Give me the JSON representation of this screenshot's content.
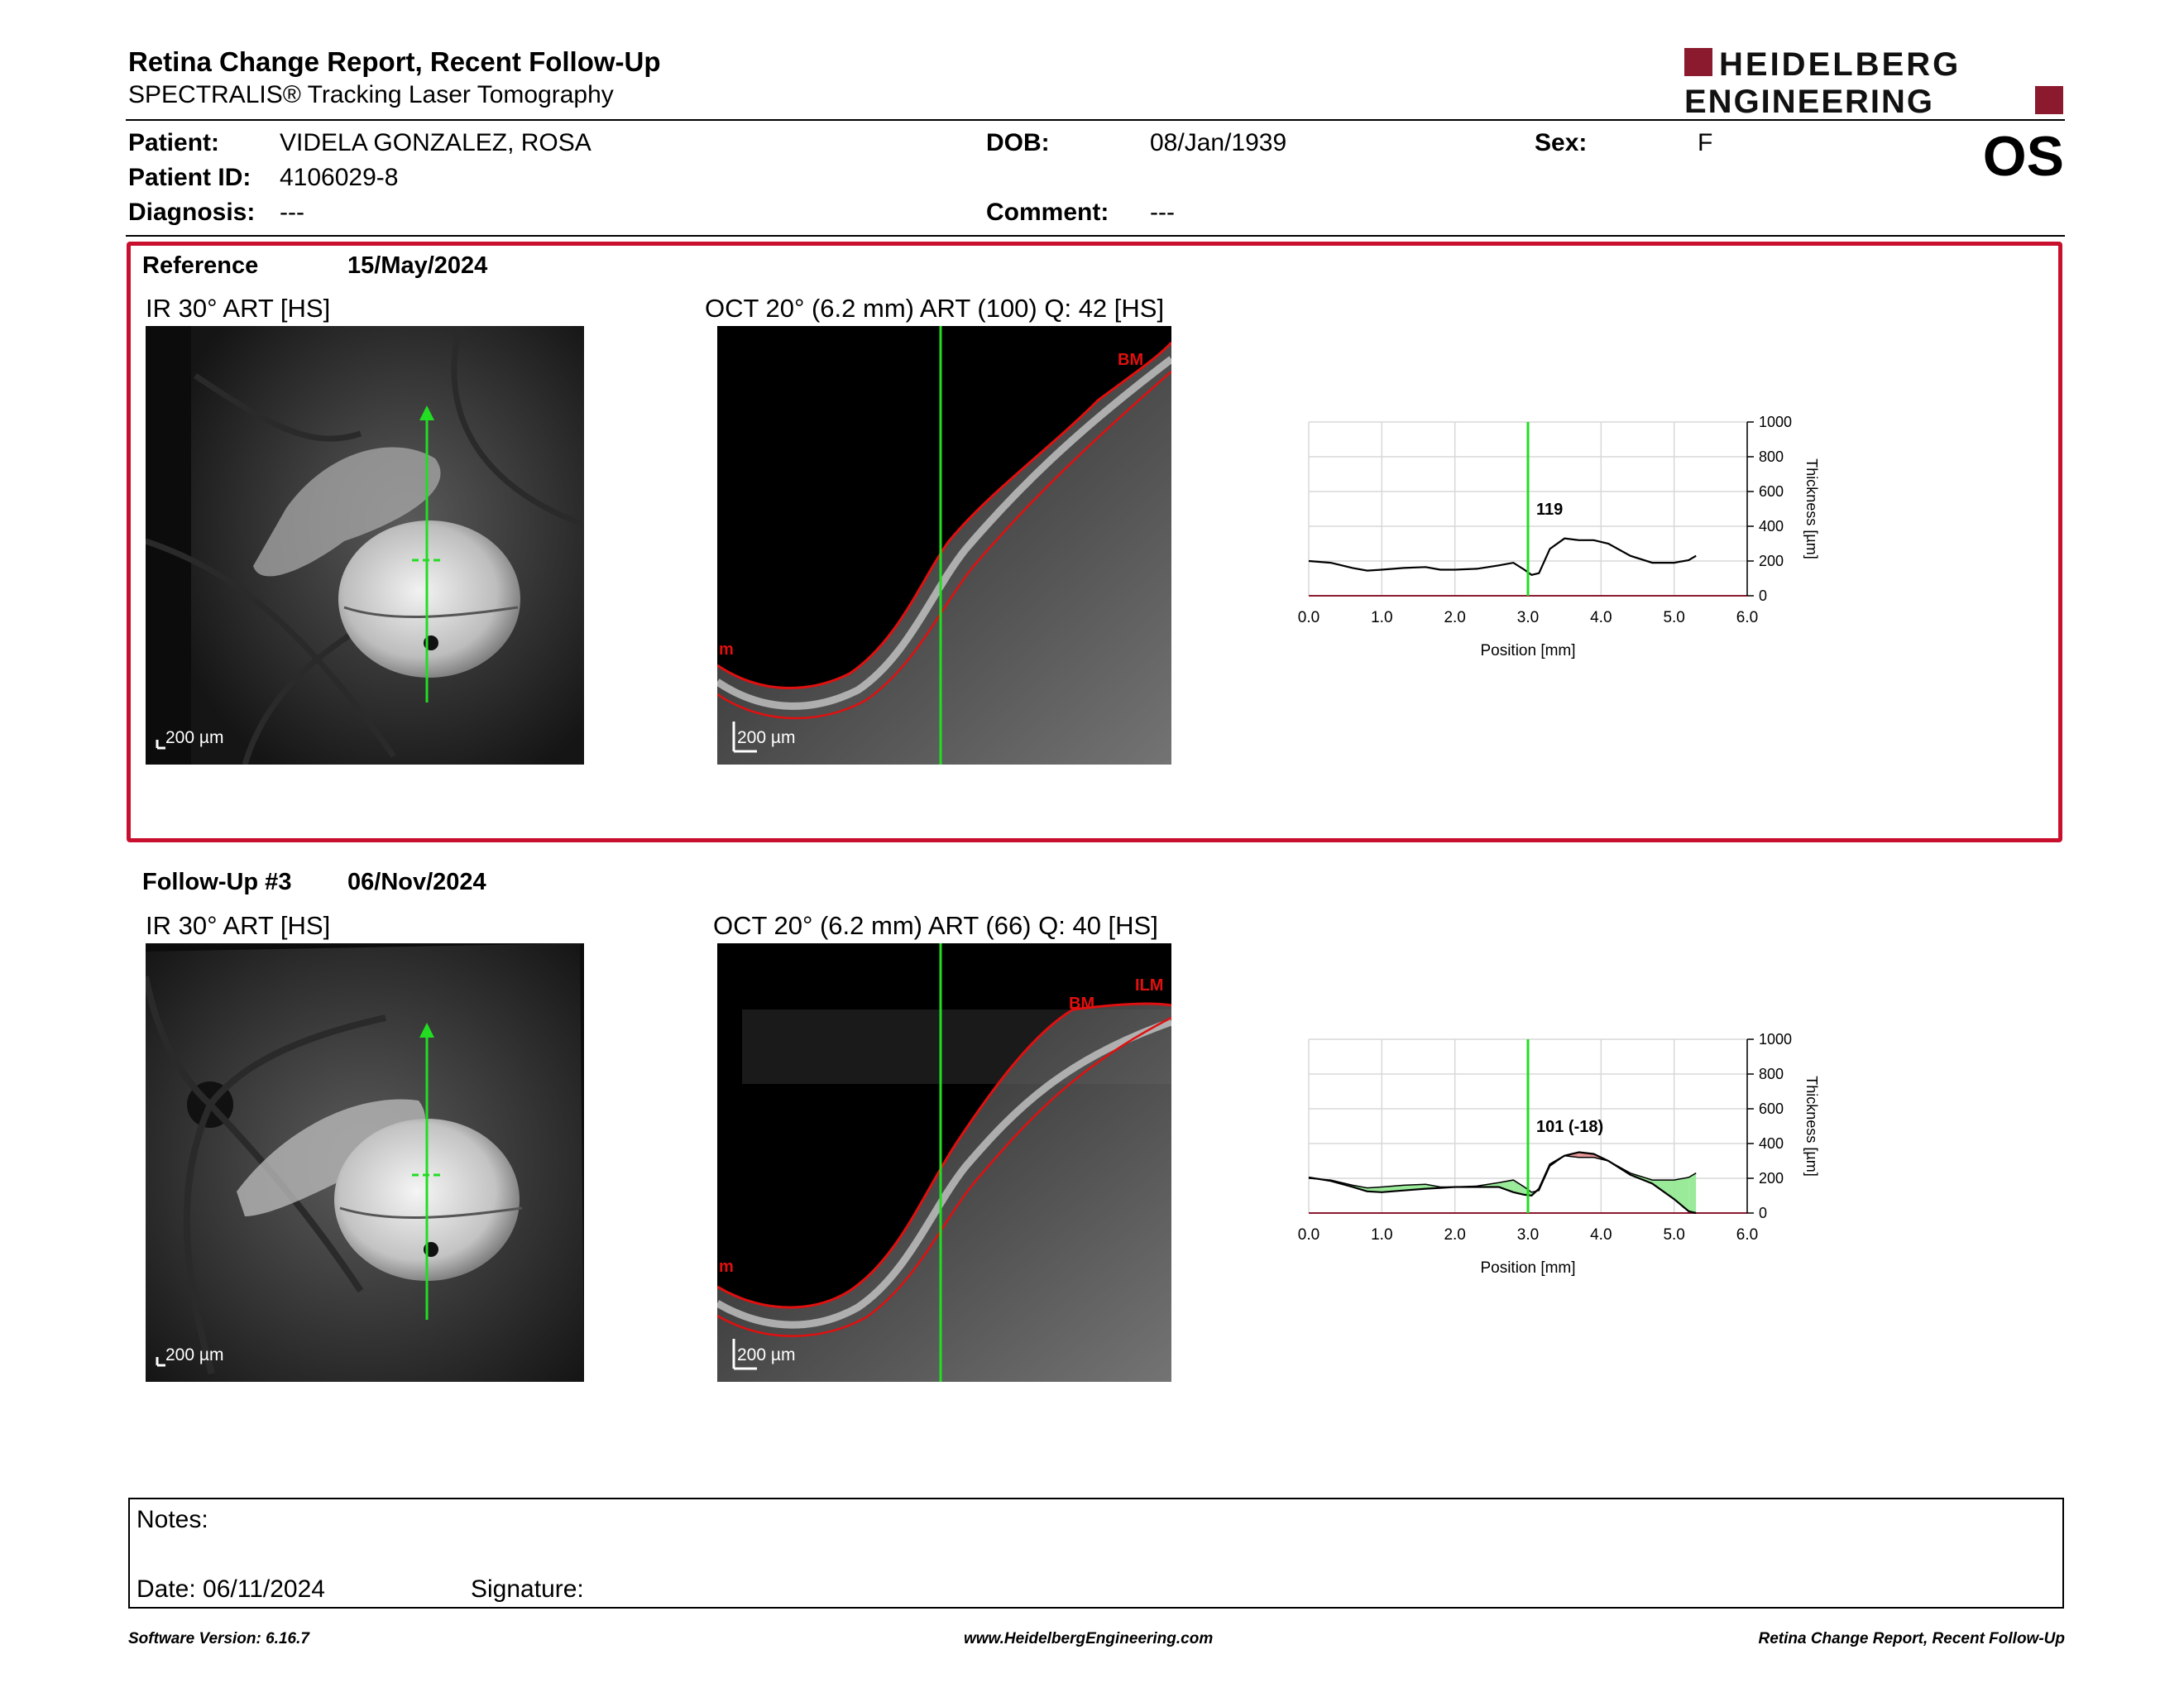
{
  "header": {
    "title": "Retina Change Report, Recent Follow-Up",
    "subtitle": "SPECTRALIS® Tracking Laser Tomography",
    "logo_line1": "HEIDELBERG",
    "logo_line2": "ENGINEERING",
    "eye": "OS",
    "brand_color": "#8b1a2f"
  },
  "patient": {
    "patient_label": "Patient:",
    "patient_value": "VIDELA GONZALEZ, ROSA",
    "id_label": "Patient ID:",
    "id_value": "4106029-8",
    "diagnosis_label": "Diagnosis:",
    "diagnosis_value": "---",
    "dob_label": "DOB:",
    "dob_value": "08/Jan/1939",
    "comment_label": "Comment:",
    "comment_value": "---",
    "sex_label": "Sex:",
    "sex_value": "F"
  },
  "reference": {
    "label": "Reference",
    "date": "15/May/2024",
    "ir_title": "IR 30° ART [HS]",
    "oct_title": "OCT 20° (6.2 mm) ART (100) Q: 42 [HS]",
    "ir_scale": "200 µm",
    "oct_scale": "200 µm",
    "oct_tag_top": "BM",
    "oct_tag_left": "m",
    "marker_value": "119",
    "border_color": "#c8102e"
  },
  "followup": {
    "label": "Follow-Up #3",
    "date": "06/Nov/2024",
    "ir_title": "IR 30° ART [HS]",
    "oct_title": "OCT 20° (6.2 mm) ART (66) Q: 40 [HS]",
    "ir_scale": "200 µm",
    "oct_scale": "200 µm",
    "oct_tag_top": "BM",
    "oct_tag_ilm": "ILM",
    "oct_tag_left": "m",
    "marker_value": "101 (-18)"
  },
  "chart_data": [
    {
      "type": "line",
      "xlabel": "Position [mm]",
      "ylabel": "Thickness [µm]",
      "xlim": [
        0,
        6
      ],
      "ylim": [
        0,
        1000
      ],
      "xticks": [
        "0.0",
        "1.0",
        "2.0",
        "3.0",
        "4.0",
        "5.0",
        "6.0"
      ],
      "yticks": [
        "0",
        "200",
        "400",
        "600",
        "800",
        "1000"
      ],
      "marker_x": 3.0,
      "marker_label": "119",
      "series": [
        {
          "x": [
            0,
            0.3,
            0.6,
            0.8,
            1.0,
            1.3,
            1.6,
            1.8,
            2.0,
            2.3,
            2.6,
            2.8,
            2.95,
            3.05,
            3.15,
            3.3,
            3.5,
            3.7,
            3.9,
            4.1,
            4.4,
            4.7,
            5.0,
            5.2,
            5.3
          ],
          "values": [
            200,
            190,
            160,
            145,
            150,
            160,
            165,
            150,
            150,
            155,
            175,
            190,
            150,
            120,
            130,
            270,
            330,
            320,
            320,
            300,
            230,
            190,
            190,
            205,
            230
          ]
        }
      ]
    },
    {
      "type": "line",
      "xlabel": "Position [mm]",
      "ylabel": "Thickness [µm]",
      "xlim": [
        0,
        6
      ],
      "ylim": [
        0,
        1000
      ],
      "xticks": [
        "0.0",
        "1.0",
        "2.0",
        "3.0",
        "4.0",
        "5.0",
        "6.0"
      ],
      "yticks": [
        "0",
        "200",
        "400",
        "600",
        "800",
        "1000"
      ],
      "marker_x": 3.0,
      "marker_label": "101 (-18)",
      "series": [
        {
          "x": [
            0,
            0.3,
            0.6,
            0.8,
            1.0,
            1.3,
            1.6,
            1.8,
            2.0,
            2.3,
            2.6,
            2.8,
            2.95,
            3.05,
            3.15,
            3.3,
            3.5,
            3.7,
            3.9,
            4.1,
            4.4,
            4.7,
            5.0,
            5.2,
            5.3
          ],
          "values": [
            200,
            190,
            160,
            145,
            150,
            160,
            165,
            150,
            150,
            155,
            175,
            190,
            150,
            120,
            130,
            270,
            330,
            320,
            320,
            300,
            230,
            190,
            190,
            205,
            230
          ]
        },
        {
          "x": [
            0,
            0.3,
            0.6,
            0.8,
            1.0,
            1.3,
            1.6,
            1.8,
            2.0,
            2.3,
            2.6,
            2.8,
            2.95,
            3.05,
            3.15,
            3.3,
            3.5,
            3.7,
            3.9,
            4.1,
            4.4,
            4.7,
            5.0,
            5.2,
            5.3
          ],
          "values": [
            205,
            185,
            150,
            125,
            120,
            130,
            140,
            145,
            150,
            150,
            150,
            120,
            105,
            101,
            140,
            280,
            330,
            350,
            340,
            300,
            220,
            170,
            80,
            10,
            0
          ]
        }
      ]
    }
  ],
  "notes": {
    "notes_label": "Notes:",
    "date_label": "Date: 06/11/2024",
    "signature_label": "Signature:"
  },
  "footer": {
    "left": "Software Version: 6.16.7",
    "center": "www.HeidelbergEngineering.com",
    "right": "Retina Change Report, Recent Follow-Up"
  }
}
